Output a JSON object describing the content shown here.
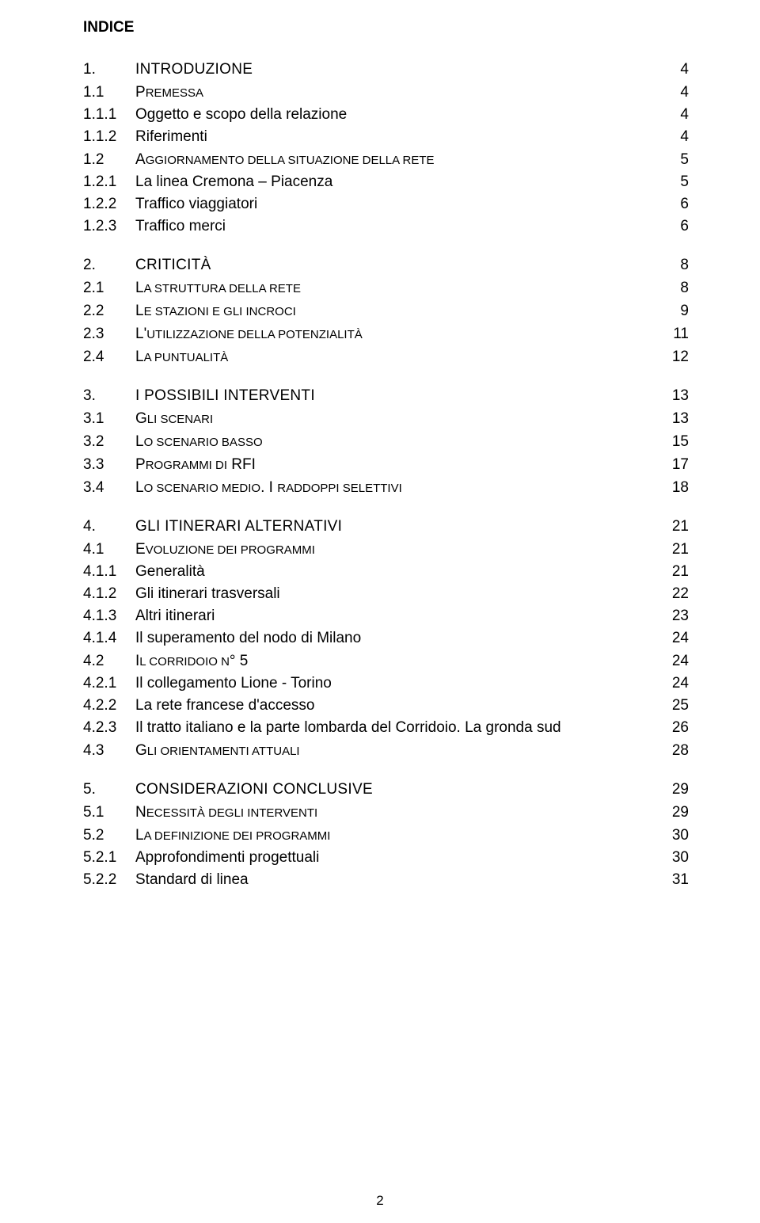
{
  "title": "INDICE",
  "footer_page": "2",
  "font": {
    "family": "Arial",
    "title_size_pt": 14,
    "row_size_pt": 14
  },
  "colors": {
    "text": "#000000",
    "background": "#ffffff"
  },
  "entries": [
    {
      "level": 1,
      "num": "1.",
      "label": "INTRODUZIONE",
      "page": "4"
    },
    {
      "level": 2,
      "num": "1.1",
      "label_html": "P<span style='font-size:15px'>REMESSA</span>",
      "page": "4"
    },
    {
      "level": 3,
      "num": "1.1.1",
      "label": "Oggetto e scopo della relazione",
      "page": "4"
    },
    {
      "level": 3,
      "num": "1.1.2",
      "label": "Riferimenti",
      "page": "4"
    },
    {
      "level": 2,
      "num": "1.2",
      "label_html": "A<span style='font-size:15px'>GGIORNAMENTO DELLA SITUAZIONE DELLA RETE</span>",
      "page": "5"
    },
    {
      "level": 3,
      "num": "1.2.1",
      "label": "La linea Cremona – Piacenza",
      "page": "5"
    },
    {
      "level": 3,
      "num": "1.2.2",
      "label": "Traffico viaggiatori",
      "page": "6"
    },
    {
      "level": 3,
      "num": "1.2.3",
      "label": "Traffico merci",
      "page": "6"
    },
    {
      "level": 1,
      "num": "2.",
      "label": "CRITICITÀ",
      "page": "8"
    },
    {
      "level": 2,
      "num": "2.1",
      "label_html": "L<span style='font-size:15px'>A STRUTTURA DELLA RETE</span>",
      "page": "8"
    },
    {
      "level": 2,
      "num": "2.2",
      "label_html": "L<span style='font-size:15px'>E STAZIONI E GLI INCROCI</span>",
      "page": "9"
    },
    {
      "level": 2,
      "num": "2.3",
      "label_html": "L'<span style='font-size:15px'>UTILIZZAZIONE DELLA POTENZIALITÀ</span>",
      "page": "11"
    },
    {
      "level": 2,
      "num": "2.4",
      "label_html": "L<span style='font-size:15px'>A PUNTUALITÀ</span>",
      "page": "12"
    },
    {
      "level": 1,
      "num": "3.",
      "label": "I POSSIBILI INTERVENTI",
      "page": "13"
    },
    {
      "level": 2,
      "num": "3.1",
      "label_html": "G<span style='font-size:15px'>LI SCENARI</span>",
      "page": "13"
    },
    {
      "level": 2,
      "num": "3.2",
      "label_html": "L<span style='font-size:15px'>O SCENARIO BASSO</span>",
      "page": "15"
    },
    {
      "level": 2,
      "num": "3.3",
      "label_html": "P<span style='font-size:15px'>ROGRAMMI DI</span> RFI",
      "page": "17"
    },
    {
      "level": 2,
      "num": "3.4",
      "label_html": "L<span style='font-size:15px'>O SCENARIO MEDIO</span>. I <span style='font-size:15px'>RADDOPPI SELETTIVI</span>",
      "page": "18"
    },
    {
      "level": 1,
      "num": "4.",
      "label": "GLI ITINERARI ALTERNATIVI",
      "page": "21"
    },
    {
      "level": 2,
      "num": "4.1",
      "label_html": "E<span style='font-size:15px'>VOLUZIONE DEI PROGRAMMI</span>",
      "page": "21"
    },
    {
      "level": 3,
      "num": "4.1.1",
      "label": "Generalità",
      "page": "21"
    },
    {
      "level": 3,
      "num": "4.1.2",
      "label": "Gli itinerari trasversali",
      "page": "22"
    },
    {
      "level": 3,
      "num": "4.1.3",
      "label": "Altri itinerari",
      "page": "23"
    },
    {
      "level": 3,
      "num": "4.1.4",
      "label": "Il superamento del nodo di Milano",
      "page": "24"
    },
    {
      "level": 2,
      "num": "4.2",
      "label_html": "I<span style='font-size:15px'>L CORRIDOIO N</span>° 5",
      "page": "24"
    },
    {
      "level": 3,
      "num": "4.2.1",
      "label": "Il collegamento Lione - Torino",
      "page": "24"
    },
    {
      "level": 3,
      "num": "4.2.2",
      "label": "La rete francese d'accesso",
      "page": "25"
    },
    {
      "level": 3,
      "num": "4.2.3",
      "label": "Il tratto italiano e la parte lombarda del Corridoio. La gronda sud",
      "page": "26"
    },
    {
      "level": 2,
      "num": "4.3",
      "label_html": "G<span style='font-size:15px'>LI ORIENTAMENTI ATTUALI</span>",
      "page": "28"
    },
    {
      "level": 1,
      "num": "5.",
      "label": "CONSIDERAZIONI CONCLUSIVE",
      "page": "29"
    },
    {
      "level": 2,
      "num": "5.1",
      "label_html": "N<span style='font-size:15px'>ECESSITÀ DEGLI INTERVENTI</span>",
      "page": "29"
    },
    {
      "level": 2,
      "num": "5.2",
      "label_html": "L<span style='font-size:15px'>A DEFINIZIONE DEI PROGRAMMI</span>",
      "page": "30"
    },
    {
      "level": 3,
      "num": "5.2.1",
      "label": "Approfondimenti progettuali",
      "page": "30"
    },
    {
      "level": 3,
      "num": "5.2.2",
      "label": "Standard di linea",
      "page": "31"
    }
  ]
}
